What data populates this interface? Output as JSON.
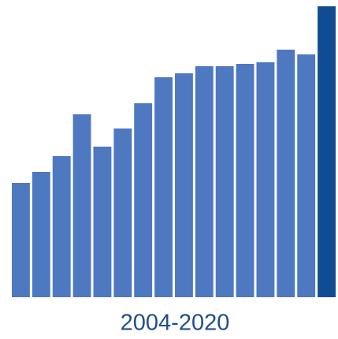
{
  "chart_data": {
    "type": "bar",
    "x_label": "2004-2020",
    "categories": [
      null,
      null,
      null,
      null,
      null,
      null,
      null,
      null,
      null,
      null,
      null,
      null,
      null,
      null,
      null,
      null
    ],
    "values": [
      145,
      159,
      179,
      232,
      191,
      214,
      246,
      279,
      284,
      293,
      293,
      296,
      298,
      314,
      308,
      369
    ],
    "colors": [
      "#4e78c0",
      "#4e78c0",
      "#4e78c0",
      "#4e78c0",
      "#4e78c0",
      "#4e78c0",
      "#4e78c0",
      "#4e78c0",
      "#4e78c0",
      "#4e78c0",
      "#4e78c0",
      "#4e78c0",
      "#4e78c0",
      "#4e78c0",
      "#4e78c0",
      "#0f4c92"
    ],
    "ylim": [
      0,
      377
    ]
  }
}
